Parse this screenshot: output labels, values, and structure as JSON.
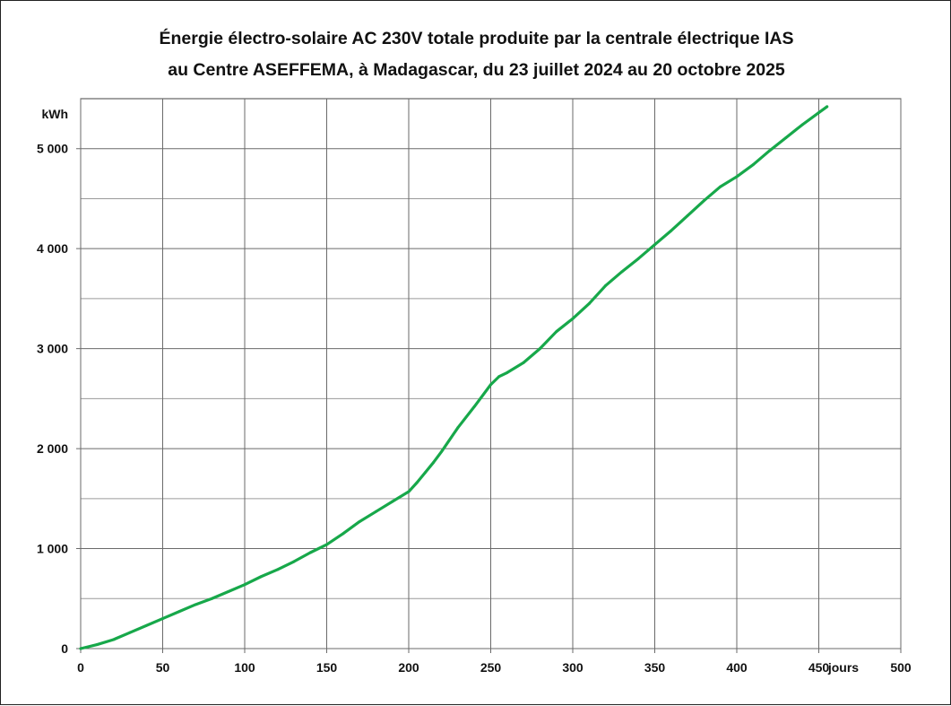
{
  "chart_data": {
    "type": "line",
    "title_lines": [
      "Énergie électro-solaire AC 230V totale produite par la centrale électrique IAS",
      "au Centre ASEFFEMA, à Madagascar, du 23 juillet 2024 au 20 octobre 2025"
    ],
    "xlabel": "jours",
    "ylabel": "kWh",
    "xlim": [
      0,
      500
    ],
    "ylim": [
      0,
      5500
    ],
    "x_ticks": [
      {
        "value": 0,
        "label": "0"
      },
      {
        "value": 50,
        "label": "50"
      },
      {
        "value": 100,
        "label": "100"
      },
      {
        "value": 150,
        "label": "150"
      },
      {
        "value": 200,
        "label": "200"
      },
      {
        "value": 250,
        "label": "250"
      },
      {
        "value": 300,
        "label": "300"
      },
      {
        "value": 350,
        "label": "350"
      },
      {
        "value": 400,
        "label": "400"
      },
      {
        "value": 450,
        "label": "450"
      },
      {
        "value": 500,
        "label": "500"
      }
    ],
    "y_ticks": [
      {
        "value": 0,
        "label": "0"
      },
      {
        "value": 1000,
        "label": "1 000"
      },
      {
        "value": 2000,
        "label": "2 000"
      },
      {
        "value": 3000,
        "label": "3 000"
      },
      {
        "value": 4000,
        "label": "4 000"
      },
      {
        "value": 5000,
        "label": "5 000"
      }
    ],
    "y_minor_gridlines": [
      500,
      1500,
      2500,
      3500,
      4500
    ],
    "grid": true,
    "series": [
      {
        "color": "#17a84a",
        "x": [
          0,
          10,
          20,
          30,
          40,
          50,
          60,
          70,
          80,
          90,
          100,
          110,
          120,
          130,
          140,
          150,
          160,
          170,
          180,
          190,
          200,
          205,
          210,
          215,
          220,
          230,
          240,
          250,
          255,
          260,
          270,
          280,
          290,
          300,
          310,
          320,
          330,
          340,
          350,
          360,
          370,
          380,
          390,
          400,
          410,
          420,
          430,
          440,
          450,
          455
        ],
        "y": [
          0,
          40,
          90,
          160,
          230,
          300,
          370,
          440,
          500,
          570,
          640,
          720,
          790,
          870,
          960,
          1040,
          1150,
          1270,
          1370,
          1470,
          1570,
          1660,
          1760,
          1860,
          1970,
          2210,
          2420,
          2640,
          2720,
          2760,
          2860,
          3000,
          3170,
          3300,
          3450,
          3630,
          3770,
          3900,
          4040,
          4180,
          4330,
          4480,
          4620,
          4720,
          4840,
          4980,
          5110,
          5240,
          5360,
          5420
        ]
      }
    ]
  }
}
